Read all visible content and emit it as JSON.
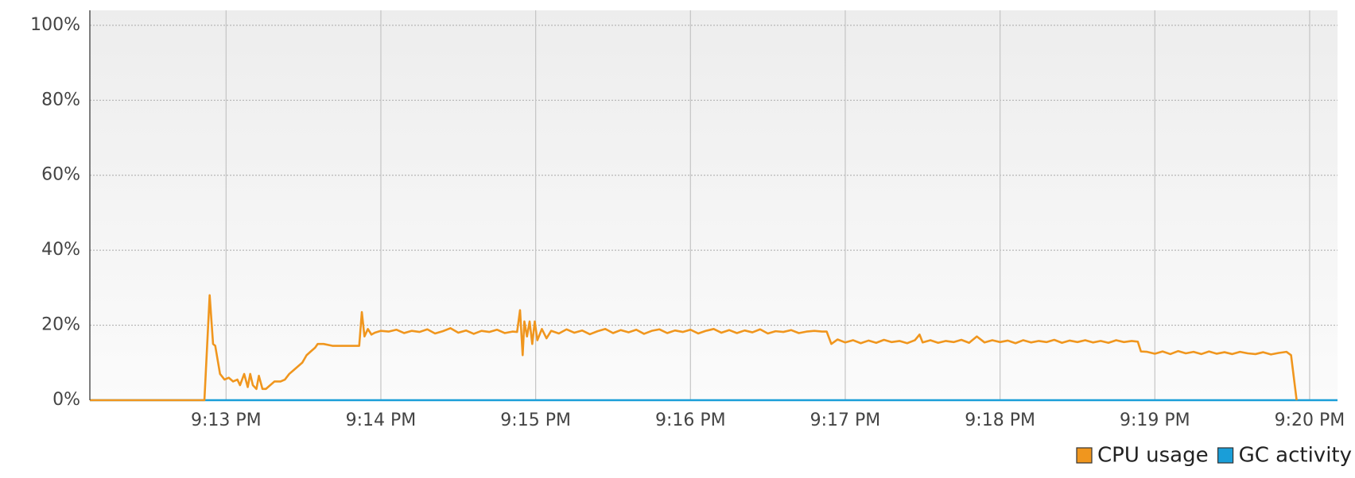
{
  "chart_data": {
    "type": "line",
    "xlim": [
      12.12,
      20.18
    ],
    "ylim": [
      0,
      104
    ],
    "xticks": [
      {
        "value": 13,
        "label": "9:13 PM"
      },
      {
        "value": 14,
        "label": "9:14 PM"
      },
      {
        "value": 15,
        "label": "9:15 PM"
      },
      {
        "value": 16,
        "label": "9:16 PM"
      },
      {
        "value": 17,
        "label": "9:17 PM"
      },
      {
        "value": 18,
        "label": "9:18 PM"
      },
      {
        "value": 19,
        "label": "9:19 PM"
      },
      {
        "value": 20,
        "label": "9:20 PM"
      }
    ],
    "yticks": [
      {
        "value": 0,
        "label": "0%"
      },
      {
        "value": 20,
        "label": "20%"
      },
      {
        "value": 40,
        "label": "40%"
      },
      {
        "value": 60,
        "label": "60%"
      },
      {
        "value": 80,
        "label": "80%"
      },
      {
        "value": 100,
        "label": "100%"
      }
    ],
    "grid": true,
    "legend": "bottom-right",
    "series": [
      {
        "name": "CPU usage",
        "color": "#f0961e",
        "x": [
          12.12,
          12.86,
          12.894,
          12.916,
          12.93,
          12.961,
          12.99,
          13.017,
          13.045,
          13.073,
          13.09,
          13.117,
          13.14,
          13.156,
          13.173,
          13.196,
          13.212,
          13.235,
          13.257,
          13.285,
          13.313,
          13.352,
          13.38,
          13.408,
          13.436,
          13.464,
          13.492,
          13.52,
          13.547,
          13.575,
          13.592,
          13.63,
          13.687,
          13.743,
          13.827,
          13.86,
          13.877,
          13.894,
          13.916,
          13.939,
          13.961,
          14.0,
          14.05,
          14.1,
          14.15,
          14.2,
          14.25,
          14.3,
          14.35,
          14.4,
          14.45,
          14.5,
          14.55,
          14.6,
          14.65,
          14.7,
          14.75,
          14.8,
          14.85,
          14.88,
          14.899,
          14.916,
          14.927,
          14.944,
          14.961,
          14.978,
          14.994,
          15.011,
          15.04,
          15.07,
          15.1,
          15.15,
          15.2,
          15.25,
          15.3,
          15.35,
          15.4,
          15.45,
          15.5,
          15.55,
          15.6,
          15.65,
          15.7,
          15.75,
          15.8,
          15.85,
          15.9,
          15.95,
          16.0,
          16.05,
          16.1,
          16.15,
          16.2,
          16.25,
          16.3,
          16.35,
          16.4,
          16.45,
          16.5,
          16.55,
          16.6,
          16.65,
          16.7,
          16.75,
          16.8,
          16.85,
          16.88,
          16.91,
          16.95,
          17.0,
          17.05,
          17.1,
          17.15,
          17.2,
          17.25,
          17.3,
          17.35,
          17.4,
          17.45,
          17.48,
          17.5,
          17.55,
          17.6,
          17.65,
          17.7,
          17.75,
          17.8,
          17.85,
          17.9,
          17.95,
          18.0,
          18.05,
          18.1,
          18.15,
          18.2,
          18.25,
          18.3,
          18.35,
          18.4,
          18.45,
          18.5,
          18.55,
          18.6,
          18.65,
          18.7,
          18.75,
          18.8,
          18.85,
          18.89,
          18.91,
          18.95,
          19.0,
          19.05,
          19.1,
          19.15,
          19.2,
          19.25,
          19.3,
          19.35,
          19.4,
          19.45,
          19.5,
          19.55,
          19.6,
          19.65,
          19.7,
          19.75,
          19.8,
          19.85,
          19.88,
          19.916
        ],
        "values": [
          0,
          0,
          28,
          15,
          14.5,
          7,
          5.5,
          6,
          5,
          5.5,
          4,
          7,
          3.5,
          7,
          4,
          3,
          6.5,
          3,
          3,
          4,
          5,
          5,
          5.5,
          7,
          8,
          9,
          10,
          12,
          13,
          14,
          15,
          15,
          14.5,
          14.5,
          14.5,
          14.5,
          23.5,
          17,
          19,
          17.5,
          18,
          18.5,
          18.3,
          18.8,
          17.9,
          18.5,
          18.2,
          18.9,
          17.8,
          18.4,
          19.2,
          18,
          18.6,
          17.7,
          18.5,
          18.2,
          18.8,
          17.9,
          18.3,
          18.2,
          24,
          12,
          21,
          17,
          21,
          15,
          21,
          16,
          19,
          16.5,
          18.5,
          17.8,
          18.9,
          18,
          18.6,
          17.6,
          18.4,
          19,
          17.9,
          18.7,
          18.1,
          18.8,
          17.7,
          18.5,
          18.9,
          17.9,
          18.6,
          18.2,
          18.8,
          17.8,
          18.5,
          19,
          18,
          18.7,
          17.9,
          18.6,
          18.1,
          18.9,
          17.8,
          18.4,
          18.2,
          18.7,
          17.9,
          18.3,
          18.5,
          18.3,
          18.3,
          15,
          16.2,
          15.4,
          16,
          15.2,
          15.9,
          15.3,
          16.1,
          15.5,
          15.8,
          15.2,
          16,
          17.5,
          15.4,
          16,
          15.3,
          15.8,
          15.5,
          16.1,
          15.3,
          17,
          15.4,
          16,
          15.5,
          15.9,
          15.2,
          16,
          15.4,
          15.8,
          15.5,
          16.1,
          15.3,
          15.9,
          15.5,
          16,
          15.4,
          15.8,
          15.3,
          16,
          15.5,
          15.8,
          15.6,
          13,
          12.9,
          12.4,
          13,
          12.3,
          13.1,
          12.5,
          12.9,
          12.3,
          13,
          12.4,
          12.8,
          12.3,
          12.9,
          12.5,
          12.3,
          12.8,
          12.2,
          12.6,
          12.9,
          12,
          0
        ]
      },
      {
        "name": "GC activity",
        "color": "#1a9ed8",
        "x": [
          12.12,
          20.18
        ],
        "values": [
          0,
          0
        ]
      }
    ]
  }
}
